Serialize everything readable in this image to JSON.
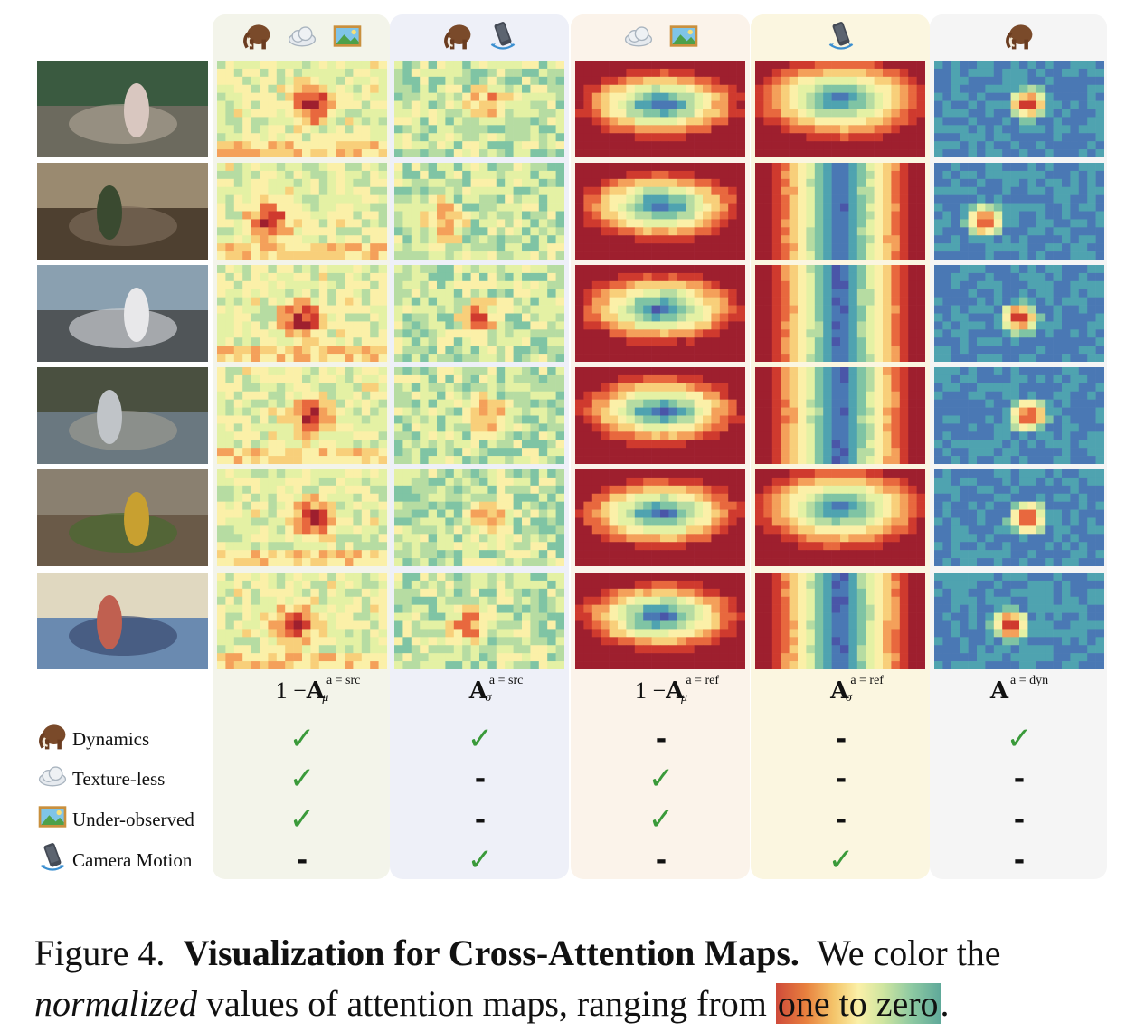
{
  "columns": [
    {
      "key": "c1",
      "bg": "#f3f4ea",
      "icons": [
        "mammoth-icon",
        "cloud-icon",
        "picture-icon"
      ],
      "formula": {
        "prefix": "1 − ",
        "base": "A",
        "sub": "μ",
        "sup": "a = src"
      }
    },
    {
      "key": "c2",
      "bg": "#eef0f8",
      "icons": [
        "mammoth-icon",
        "camera-motion-icon"
      ],
      "formula": {
        "prefix": "",
        "base": "A",
        "sub": "σ",
        "sup": "a = src"
      }
    },
    {
      "key": "c3",
      "bg": "#fbf3ea",
      "icons": [
        "cloud-icon",
        "picture-icon"
      ],
      "formula": {
        "prefix": "1 − ",
        "base": "A",
        "sub": "μ",
        "sup": "a = ref"
      }
    },
    {
      "key": "c4",
      "bg": "#fbf6e0",
      "icons": [
        "camera-motion-icon"
      ],
      "formula": {
        "prefix": "",
        "base": "A",
        "sub": "σ",
        "sup": "a = ref"
      }
    },
    {
      "key": "c5",
      "bg": "#f5f5f5",
      "icons": [
        "mammoth-icon"
      ],
      "formula": {
        "prefix": "",
        "base": "A",
        "sub": "",
        "sup": "a = dyn"
      }
    }
  ],
  "rows": [
    {
      "label": "Dynamics",
      "icon": "mammoth-icon",
      "marks": [
        "✓",
        "✓",
        "-",
        "-",
        "✓"
      ]
    },
    {
      "label": "Texture-less",
      "icon": "cloud-icon",
      "marks": [
        "✓",
        "-",
        "✓",
        "-",
        "-"
      ]
    },
    {
      "label": "Under-observed",
      "icon": "picture-icon",
      "marks": [
        "✓",
        "-",
        "✓",
        "-",
        "-"
      ]
    },
    {
      "label": "Camera Motion",
      "icon": "camera-motion-icon",
      "marks": [
        "-",
        "✓",
        "-",
        "✓",
        "-"
      ]
    }
  ],
  "caption": {
    "figure": "Figure 4.",
    "title": "Visualization for Cross-Attention Maps.",
    "text1": "We color the",
    "emph": "normalized",
    "text2": "values of attention maps, ranging from",
    "grad": "one to zero",
    "end": "."
  },
  "colors": {
    "check": "#3a9a3a",
    "hot": "#cf3a2e",
    "cold": "#4a62b0"
  }
}
